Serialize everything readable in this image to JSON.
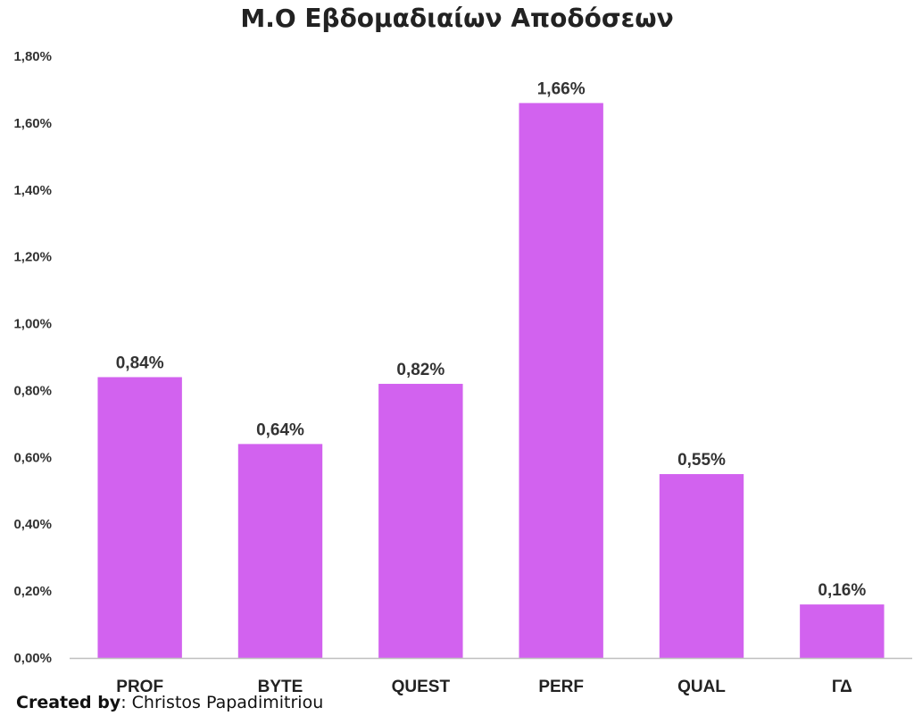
{
  "chart_data": {
    "type": "bar",
    "title": "M.O Εβδομαδιαίων Αποδόσεων",
    "xlabel": "",
    "ylabel": "",
    "categories": [
      "PROF",
      "BYTE",
      "QUEST",
      "PERF",
      "QUAL",
      "ΓΔ"
    ],
    "values": [
      0.84,
      0.64,
      0.82,
      1.66,
      0.55,
      0.16
    ],
    "value_labels": [
      "0,84%",
      "0,64%",
      "0,82%",
      "1,66%",
      "0,55%",
      "0,16%"
    ],
    "ylim": [
      0,
      1.8
    ],
    "yticks": [
      0,
      0.2,
      0.4,
      0.6,
      0.8,
      1.0,
      1.2,
      1.4,
      1.6,
      1.8
    ],
    "ytick_labels": [
      "0,00%",
      "0,20%",
      "0,40%",
      "0,60%",
      "0,80%",
      "1,00%",
      "1,20%",
      "1,40%",
      "1,60%",
      "1,80%"
    ],
    "grid": false,
    "legend": "none",
    "bar_color": "#d262ef",
    "axis_color": "#bfbfbf"
  },
  "footer": {
    "credit_label": "Created by",
    "credit_sep": ": ",
    "credit_name": "Christos Papadimitriou"
  }
}
